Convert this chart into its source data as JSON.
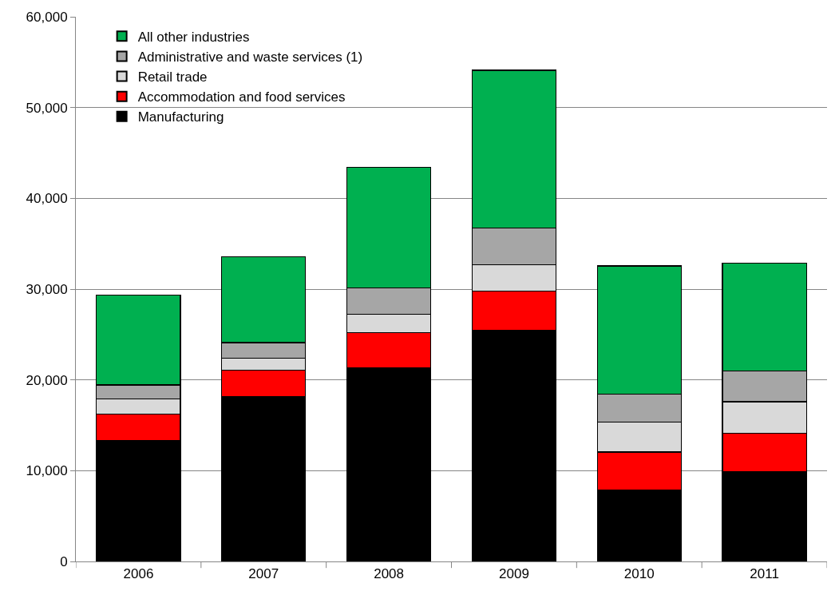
{
  "chart_data": {
    "type": "bar",
    "stacked": true,
    "categories": [
      "2006",
      "2007",
      "2008",
      "2009",
      "2010",
      "2011"
    ],
    "series": [
      {
        "name": "Manufacturing",
        "color": "#000000",
        "values": [
          13300,
          18200,
          21350,
          25450,
          7850,
          9850
        ]
      },
      {
        "name": "Accommodation and food services",
        "color": "#ff0000",
        "values": [
          2950,
          2900,
          3850,
          4350,
          4200,
          4300
        ]
      },
      {
        "name": "Retail trade",
        "color": "#d9d9d9",
        "values": [
          1650,
          1300,
          2050,
          2900,
          3300,
          3450
        ]
      },
      {
        "name": "Administrative and waste services (1)",
        "color": "#a6a6a6",
        "values": [
          1550,
          1700,
          2850,
          4050,
          3050,
          3350
        ]
      },
      {
        "name": "All other industries",
        "color": "#00b050",
        "values": [
          9900,
          9450,
          13350,
          17350,
          14150,
          11900
        ]
      }
    ],
    "ylim": [
      0,
      60000
    ],
    "yticks": [
      {
        "value": 0,
        "label": "0"
      },
      {
        "value": 10000,
        "label": "10,000"
      },
      {
        "value": 20000,
        "label": "20,000"
      },
      {
        "value": 30000,
        "label": "30,000"
      },
      {
        "value": 40000,
        "label": "40,000"
      },
      {
        "value": 50000,
        "label": "50,000"
      },
      {
        "value": 60000,
        "label": "60,000"
      }
    ],
    "grid": "y",
    "legend": "top left"
  }
}
